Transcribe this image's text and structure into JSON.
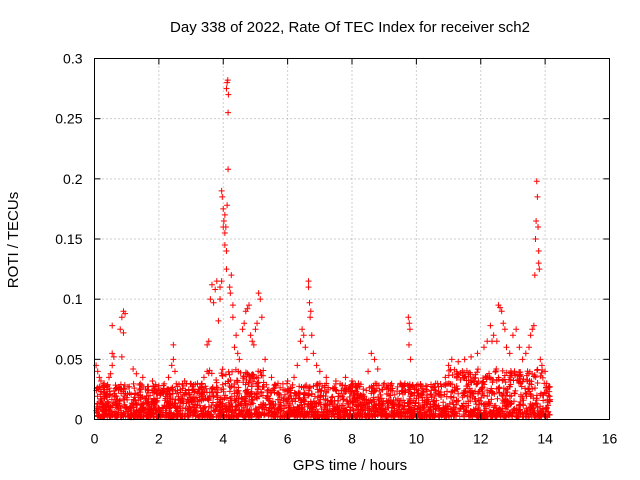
{
  "chart_data": {
    "type": "scatter",
    "title": "Day 338 of 2022, Rate Of TEC Index for receiver sch2",
    "xlabel": "GPS time / hours",
    "ylabel": "ROTI / TECUs",
    "xlim": [
      0,
      16
    ],
    "ylim": [
      0,
      0.3
    ],
    "x_ticks": [
      0,
      2,
      4,
      6,
      8,
      10,
      12,
      14,
      16
    ],
    "x_tick_labels": [
      "0",
      "2",
      "4",
      "6",
      "8",
      "10",
      "12",
      "14",
      "16"
    ],
    "y_ticks": [
      0,
      0.05,
      0.1,
      0.15,
      0.2,
      0.25,
      0.3
    ],
    "y_tick_labels": [
      "0",
      "0.05",
      "0.1",
      "0.15",
      "0.2",
      "0.25",
      "0.3"
    ],
    "grid": true,
    "marker": "+",
    "series": [
      {
        "name": "ROTI",
        "color": "#ff0000",
        "points": [
          [
            0.05,
            0.045
          ],
          [
            0.1,
            0.04
          ],
          [
            0.15,
            0.035
          ],
          [
            0.2,
            0.032
          ],
          [
            0.3,
            0.03
          ],
          [
            0.4,
            0.028
          ],
          [
            0.45,
            0.035
          ],
          [
            0.5,
            0.038
          ],
          [
            0.55,
            0.045
          ],
          [
            0.55,
            0.055
          ],
          [
            0.6,
            0.052
          ],
          [
            0.55,
            0.078
          ],
          [
            0.8,
            0.075
          ],
          [
            0.85,
            0.085
          ],
          [
            0.9,
            0.09
          ],
          [
            0.9,
            0.072
          ],
          [
            0.95,
            0.088
          ],
          [
            0.85,
            0.052
          ],
          [
            1.2,
            0.042
          ],
          [
            1.3,
            0.038
          ],
          [
            1.5,
            0.035
          ],
          [
            1.8,
            0.032
          ],
          [
            2.0,
            0.028
          ],
          [
            2.3,
            0.035
          ],
          [
            2.4,
            0.045
          ],
          [
            2.45,
            0.05
          ],
          [
            2.45,
            0.062
          ],
          [
            2.5,
            0.04
          ],
          [
            2.8,
            0.032
          ],
          [
            3.2,
            0.03
          ],
          [
            3.4,
            0.035
          ],
          [
            3.5,
            0.04
          ],
          [
            3.5,
            0.062
          ],
          [
            3.55,
            0.065
          ],
          [
            3.6,
            0.1
          ],
          [
            3.65,
            0.112
          ],
          [
            3.7,
            0.097
          ],
          [
            3.75,
            0.108
          ],
          [
            3.8,
            0.115
          ],
          [
            3.85,
            0.082
          ],
          [
            3.9,
            0.1
          ],
          [
            3.9,
            0.11
          ],
          [
            3.95,
            0.115
          ],
          [
            3.95,
            0.19
          ],
          [
            3.97,
            0.185
          ],
          [
            4.0,
            0.175
          ],
          [
            4.0,
            0.16
          ],
          [
            4.02,
            0.165
          ],
          [
            4.05,
            0.155
          ],
          [
            4.05,
            0.145
          ],
          [
            4.05,
            0.17
          ],
          [
            4.08,
            0.16
          ],
          [
            4.1,
            0.14
          ],
          [
            4.1,
            0.125
          ],
          [
            4.12,
            0.178
          ],
          [
            4.15,
            0.208
          ],
          [
            4.15,
            0.255
          ],
          [
            4.1,
            0.275
          ],
          [
            4.12,
            0.28
          ],
          [
            4.14,
            0.282
          ],
          [
            4.16,
            0.27
          ],
          [
            4.2,
            0.11
          ],
          [
            4.22,
            0.105
          ],
          [
            4.25,
            0.12
          ],
          [
            4.3,
            0.095
          ],
          [
            4.3,
            0.085
          ],
          [
            4.35,
            0.06
          ],
          [
            4.4,
            0.07
          ],
          [
            4.45,
            0.055
          ],
          [
            4.5,
            0.05
          ],
          [
            4.6,
            0.075
          ],
          [
            4.65,
            0.08
          ],
          [
            4.7,
            0.09
          ],
          [
            4.75,
            0.092
          ],
          [
            4.8,
            0.095
          ],
          [
            4.85,
            0.07
          ],
          [
            4.9,
            0.065
          ],
          [
            4.95,
            0.062
          ],
          [
            5.0,
            0.075
          ],
          [
            5.05,
            0.08
          ],
          [
            5.1,
            0.105
          ],
          [
            5.15,
            0.1
          ],
          [
            5.2,
            0.085
          ],
          [
            5.3,
            0.05
          ],
          [
            5.5,
            0.035
          ],
          [
            5.7,
            0.03
          ],
          [
            6.0,
            0.032
          ],
          [
            6.2,
            0.035
          ],
          [
            6.3,
            0.045
          ],
          [
            6.4,
            0.065
          ],
          [
            6.45,
            0.075
          ],
          [
            6.5,
            0.07
          ],
          [
            6.55,
            0.06
          ],
          [
            6.6,
            0.05
          ],
          [
            6.65,
            0.115
          ],
          [
            6.65,
            0.11
          ],
          [
            6.68,
            0.097
          ],
          [
            6.7,
            0.085
          ],
          [
            6.72,
            0.09
          ],
          [
            6.75,
            0.07
          ],
          [
            6.8,
            0.055
          ],
          [
            6.9,
            0.045
          ],
          [
            7.0,
            0.04
          ],
          [
            7.2,
            0.035
          ],
          [
            7.5,
            0.032
          ],
          [
            7.8,
            0.035
          ],
          [
            8.0,
            0.032
          ],
          [
            8.2,
            0.03
          ],
          [
            8.5,
            0.04
          ],
          [
            8.6,
            0.055
          ],
          [
            8.7,
            0.05
          ],
          [
            8.8,
            0.042
          ],
          [
            9.0,
            0.03
          ],
          [
            9.2,
            0.028
          ],
          [
            9.5,
            0.03
          ],
          [
            9.75,
            0.085
          ],
          [
            9.78,
            0.08
          ],
          [
            9.8,
            0.075
          ],
          [
            9.77,
            0.062
          ],
          [
            9.82,
            0.05
          ],
          [
            10.0,
            0.028
          ],
          [
            10.3,
            0.025
          ],
          [
            10.6,
            0.03
          ],
          [
            10.9,
            0.035
          ],
          [
            11.0,
            0.045
          ],
          [
            11.1,
            0.05
          ],
          [
            11.3,
            0.048
          ],
          [
            11.5,
            0.05
          ],
          [
            11.7,
            0.052
          ],
          [
            11.9,
            0.055
          ],
          [
            12.1,
            0.06
          ],
          [
            12.2,
            0.065
          ],
          [
            12.3,
            0.078
          ],
          [
            12.35,
            0.065
          ],
          [
            12.4,
            0.07
          ],
          [
            12.5,
            0.065
          ],
          [
            12.55,
            0.095
          ],
          [
            12.6,
            0.093
          ],
          [
            12.65,
            0.09
          ],
          [
            12.7,
            0.08
          ],
          [
            12.75,
            0.075
          ],
          [
            12.8,
            0.06
          ],
          [
            12.9,
            0.055
          ],
          [
            13.0,
            0.07
          ],
          [
            13.1,
            0.075
          ],
          [
            13.2,
            0.06
          ],
          [
            13.3,
            0.05
          ],
          [
            13.4,
            0.055
          ],
          [
            13.5,
            0.06
          ],
          [
            13.55,
            0.07
          ],
          [
            13.6,
            0.075
          ],
          [
            13.65,
            0.078
          ],
          [
            13.68,
            0.12
          ],
          [
            13.7,
            0.15
          ],
          [
            13.72,
            0.165
          ],
          [
            13.74,
            0.198
          ],
          [
            13.76,
            0.185
          ],
          [
            13.78,
            0.16
          ],
          [
            13.8,
            0.13
          ],
          [
            13.8,
            0.14
          ],
          [
            13.82,
            0.125
          ],
          [
            13.85,
            0.05
          ],
          [
            13.9,
            0.045
          ],
          [
            14.0,
            0.04
          ],
          [
            14.05,
            0.03
          ],
          [
            14.1,
            0.02
          ],
          [
            14.15,
            0.015
          ]
        ]
      }
    ]
  }
}
